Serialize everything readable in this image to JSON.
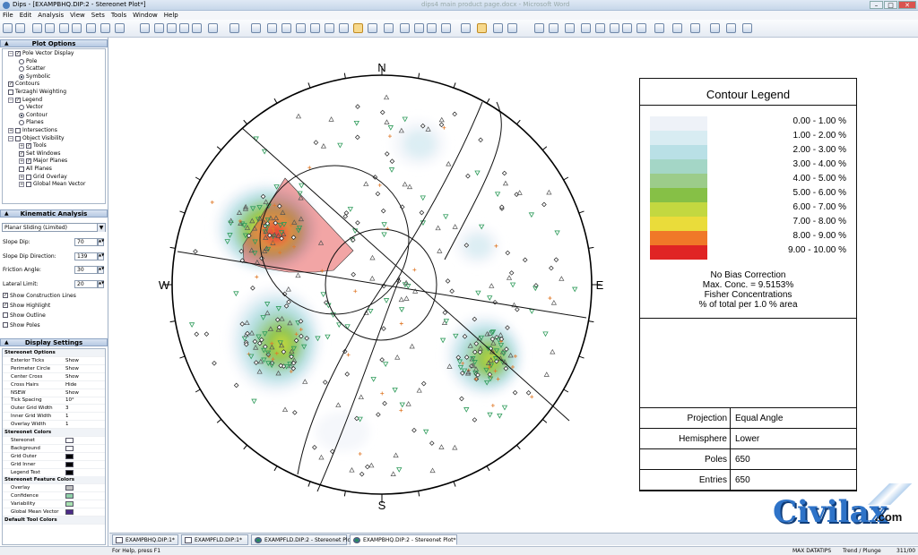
{
  "window": {
    "title": "Dips - [EXAMPBHQ.DIP:2 - Stereonet Plot*]",
    "background_title": "dips4 main product page.docx - Microsoft Word"
  },
  "menu": [
    "File",
    "Edit",
    "Analysis",
    "View",
    "Sets",
    "Tools",
    "Window",
    "Help"
  ],
  "plot_options": {
    "header": "Plot Options",
    "tree": [
      {
        "label": "Pole Vector Display",
        "kind": "check",
        "checked": "✓",
        "level": 1,
        "expand": "−"
      },
      {
        "label": "Pole",
        "kind": "radio",
        "on": false,
        "level": 2
      },
      {
        "label": "Scatter",
        "kind": "radio",
        "on": false,
        "level": 2
      },
      {
        "label": "Symbolic",
        "kind": "radio",
        "on": true,
        "level": 2
      },
      {
        "label": "Contours",
        "kind": "check",
        "checked": "✓",
        "level": 1
      },
      {
        "label": "Terzaghi Weighting",
        "kind": "check",
        "checked": "",
        "level": 1
      },
      {
        "label": "Legend",
        "kind": "check",
        "checked": "✓",
        "level": 1,
        "expand": "−"
      },
      {
        "label": "Vector",
        "kind": "radio",
        "on": false,
        "level": 2
      },
      {
        "label": "Contour",
        "kind": "radio",
        "on": true,
        "level": 2
      },
      {
        "label": "Planes",
        "kind": "radio",
        "on": false,
        "level": 2
      },
      {
        "label": "Intersections",
        "kind": "check",
        "checked": "",
        "level": 1,
        "expand": "+"
      },
      {
        "label": "Object Visibility",
        "kind": "check",
        "checked": "",
        "level": 1,
        "expand": "−"
      },
      {
        "label": "Tools",
        "kind": "check",
        "checked": "✓",
        "level": 2,
        "expand": "+"
      },
      {
        "label": "Set Windows",
        "kind": "check",
        "checked": "✓",
        "level": 2
      },
      {
        "label": "Major Planes",
        "kind": "check",
        "checked": "✓",
        "level": 2,
        "expand": "+"
      },
      {
        "label": "All Planes",
        "kind": "check",
        "checked": "",
        "level": 2
      },
      {
        "label": "Grid Overlay",
        "kind": "check",
        "checked": "",
        "level": 2,
        "expand": "+"
      },
      {
        "label": "Global Mean Vector",
        "kind": "check",
        "checked": "",
        "level": 2,
        "expand": "+"
      }
    ]
  },
  "kinematic": {
    "header": "Kinematic Analysis",
    "mode": "Planar Sliding (Limited)",
    "fields": [
      {
        "label": "Slope Dip:",
        "value": "70"
      },
      {
        "label": "Slope Dip Direction:",
        "value": "139"
      },
      {
        "label": "Friction Angle:",
        "value": "30"
      },
      {
        "label": "Lateral Limit:",
        "value": "20"
      }
    ],
    "checks": [
      {
        "label": "Show Construction Lines",
        "checked": "✓"
      },
      {
        "label": "Show Highlight",
        "checked": "✓"
      },
      {
        "label": "Show Outline",
        "checked": ""
      },
      {
        "label": "Show Poles",
        "checked": ""
      }
    ]
  },
  "display_settings": {
    "header": "Display Settings",
    "groups": [
      {
        "name": "Stereonet Options",
        "rows": [
          {
            "k": "Exterior Ticks",
            "v": "Show"
          },
          {
            "k": "Perimeter Circle",
            "v": "Show"
          },
          {
            "k": "Center Cross",
            "v": "Show"
          },
          {
            "k": "Cross Hairs",
            "v": "Hide"
          },
          {
            "k": "NSEW",
            "v": "Show"
          },
          {
            "k": "Tick Spacing",
            "v": "10°"
          },
          {
            "k": "Outer Grid Width",
            "v": "3"
          },
          {
            "k": "Inner Grid Width",
            "v": "1"
          },
          {
            "k": "Overlay Width",
            "v": "1"
          }
        ]
      },
      {
        "name": "Stereonet Colors",
        "rows": [
          {
            "k": "Stereonet",
            "color": "#ffffff"
          },
          {
            "k": "Background",
            "color": "#ffffff"
          },
          {
            "k": "Grid Outer",
            "color": "#000000"
          },
          {
            "k": "Grid Inner",
            "color": "#000000"
          },
          {
            "k": "Legend Text",
            "color": "#000000"
          }
        ]
      },
      {
        "name": "Stereonet Feature Colors",
        "rows": [
          {
            "k": "Overlay",
            "color": "#c0c0c0"
          },
          {
            "k": "Confidence",
            "color": "#8fd0a8"
          },
          {
            "k": "Variability",
            "color": "#a8e0b0"
          },
          {
            "k": "Global Mean Vector",
            "color": "#4b2a86"
          }
        ]
      },
      {
        "name": "Default Tool Colors",
        "rows": []
      }
    ]
  },
  "stereonet": {
    "labels": {
      "N": "N",
      "S": "S",
      "E": "E",
      "W": "W"
    },
    "pole_colors": {
      "triangle": "#2e9b5a",
      "diamond": "#222222",
      "cross": "#e07a2a"
    },
    "contour_colors": [
      "#eef2f8",
      "#d8ecf2",
      "#b9e0e6",
      "#a4d6c6",
      "#9ccc8a",
      "#86c046",
      "#c3d840",
      "#eadc3a",
      "#f07828",
      "#e02424"
    ]
  },
  "legend": {
    "title": "Contour Legend",
    "ranges": [
      {
        "label": "0.00 -  1.00 %",
        "color": "#eef2f8"
      },
      {
        "label": "1.00 -  2.00 %",
        "color": "#d8ecf2"
      },
      {
        "label": "2.00 -  3.00 %",
        "color": "#b9e0e6"
      },
      {
        "label": "3.00 -  4.00 %",
        "color": "#a4d6c6"
      },
      {
        "label": "4.00 -  5.00 %",
        "color": "#9ccc8a"
      },
      {
        "label": "5.00 -  6.00 %",
        "color": "#86c046"
      },
      {
        "label": "6.00 -  7.00 %",
        "color": "#c3d840"
      },
      {
        "label": "7.00 -  8.00 %",
        "color": "#eadc3a"
      },
      {
        "label": "8.00 -  9.00 %",
        "color": "#f07828"
      },
      {
        "label": "9.00 - 10.00 %",
        "color": "#e02424"
      }
    ],
    "notes": [
      "No Bias Correction",
      "Max. Conc. = 9.5153%",
      "Fisher Concentrations",
      "% of total per 1.0 % area"
    ],
    "info": [
      {
        "k": "Projection",
        "v": "Equal Angle"
      },
      {
        "k": "Hemisphere",
        "v": "Lower"
      },
      {
        "k": "Poles",
        "v": "650"
      },
      {
        "k": "Entries",
        "v": "650"
      }
    ]
  },
  "tabs": [
    {
      "label": "EXAMPBHQ.DIP:1*",
      "icon": "doc"
    },
    {
      "label": "EXAMPFLD.DIP:1*",
      "icon": "doc"
    },
    {
      "label": "EXAMPFLD.DIP:2 - Stereonet Plot*",
      "icon": "globe"
    },
    {
      "label": "EXAMPBHQ.DIP:2 - Stereonet Plot*",
      "icon": "globe",
      "active": true
    }
  ],
  "status": {
    "help": "For Help, press F1",
    "datatips": "MAX DATATIPS",
    "mode": "Trend / Plunge",
    "coords": "311/00"
  },
  "watermark": {
    "name": "Civilax",
    ".com": ".com"
  }
}
